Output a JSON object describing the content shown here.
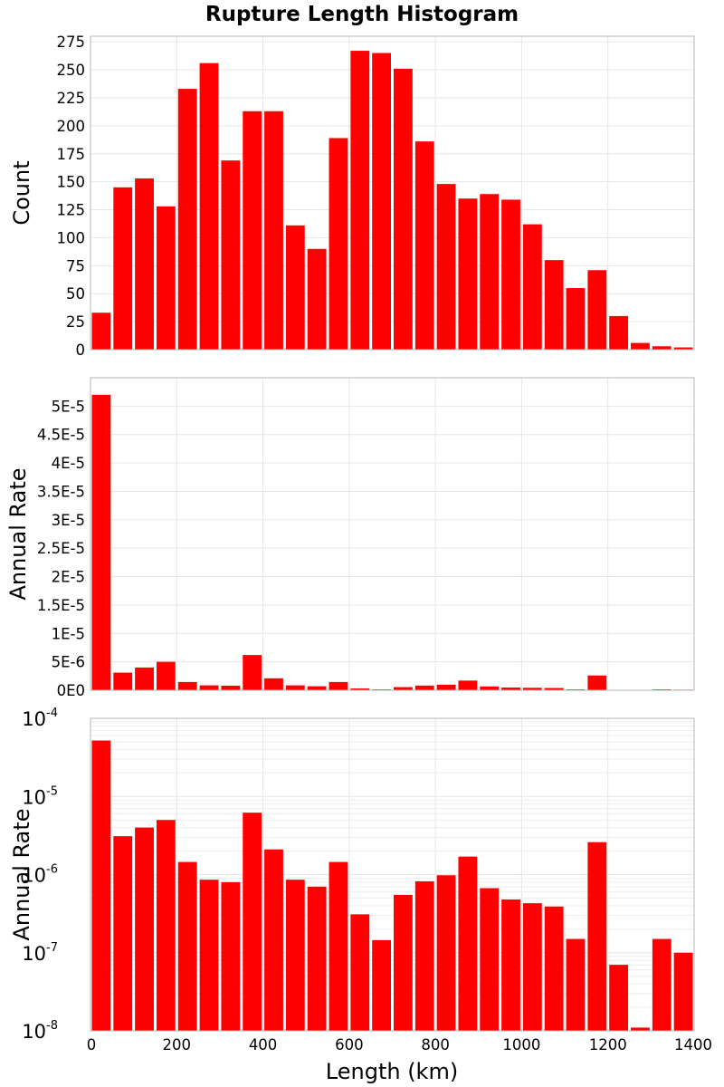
{
  "figure": {
    "title": "Rupture Length Histogram",
    "xlabel": "Length (km)",
    "bar_color": "#ff0000",
    "xlim": [
      0,
      1400
    ],
    "xticks": [
      0,
      200,
      400,
      600,
      800,
      1000,
      1200,
      1400
    ],
    "bin_width": 50
  },
  "chart_data": [
    {
      "type": "bar",
      "ylabel": "Count",
      "yscale": "linear",
      "ylim": [
        0,
        280
      ],
      "yticks": [
        0,
        25,
        50,
        75,
        100,
        125,
        150,
        175,
        200,
        225,
        250,
        275
      ],
      "ytick_labels": [
        "0",
        "25",
        "50",
        "75",
        "100",
        "125",
        "150",
        "175",
        "200",
        "225",
        "250",
        "275"
      ],
      "grid": true,
      "x": [
        25,
        75,
        125,
        175,
        225,
        275,
        325,
        375,
        425,
        475,
        525,
        575,
        625,
        675,
        725,
        775,
        825,
        875,
        925,
        975,
        1025,
        1075,
        1125,
        1175,
        1225,
        1275,
        1325,
        1375
      ],
      "values": [
        33,
        145,
        153,
        128,
        233,
        256,
        169,
        213,
        213,
        111,
        90,
        189,
        267,
        265,
        251,
        186,
        148,
        135,
        139,
        134,
        112,
        80,
        55,
        71,
        30,
        6,
        3,
        2
      ]
    },
    {
      "type": "bar",
      "ylabel": "Annual Rate",
      "yscale": "linear",
      "ylim": [
        0,
        5.5e-05
      ],
      "yticks": [
        0,
        5e-06,
        1e-05,
        1.5e-05,
        2e-05,
        2.5e-05,
        3e-05,
        3.5e-05,
        4e-05,
        4.5e-05,
        5e-05
      ],
      "ytick_labels": [
        "0E0",
        "5E-6",
        "1E-5",
        "1.5E-5",
        "2E-5",
        "2.5E-5",
        "3E-5",
        "3.5E-5",
        "4E-5",
        "4.5E-5",
        "5E-5"
      ],
      "grid": true,
      "x": [
        25,
        75,
        125,
        175,
        225,
        275,
        325,
        375,
        425,
        475,
        525,
        575,
        625,
        675,
        725,
        775,
        825,
        875,
        925,
        975,
        1025,
        1075,
        1125,
        1175,
        1225,
        1275,
        1325,
        1375
      ],
      "values": [
        5.2e-05,
        3.1e-06,
        4e-06,
        5e-06,
        1.45e-06,
        8.6e-07,
        8e-07,
        6.2e-06,
        2.1e-06,
        8.6e-07,
        7e-07,
        1.45e-06,
        3.1e-07,
        1.45e-07,
        5.5e-07,
        8.2e-07,
        9.8e-07,
        1.7e-06,
        6.7e-07,
        4.8e-07,
        4.3e-07,
        3.9e-07,
        1.5e-07,
        2.6e-06,
        7e-08,
        1.1e-08,
        1.5e-07,
        1e-07
      ]
    },
    {
      "type": "bar",
      "ylabel": "Annual Rate",
      "yscale": "log",
      "ylim": [
        1e-08,
        0.0001
      ],
      "ytick_labels": [
        {
          "base": "10",
          "exp": "-4"
        },
        {
          "base": "10",
          "exp": "-5"
        },
        {
          "base": "10",
          "exp": "-6"
        },
        {
          "base": "10",
          "exp": "-7"
        },
        {
          "base": "10",
          "exp": "-8"
        }
      ],
      "grid": true,
      "x": [
        25,
        75,
        125,
        175,
        225,
        275,
        325,
        375,
        425,
        475,
        525,
        575,
        625,
        675,
        725,
        775,
        825,
        875,
        925,
        975,
        1025,
        1075,
        1125,
        1175,
        1225,
        1275,
        1325,
        1375
      ],
      "values": [
        5.2e-05,
        3.1e-06,
        4e-06,
        5e-06,
        1.45e-06,
        8.6e-07,
        8e-07,
        6.2e-06,
        2.1e-06,
        8.6e-07,
        7e-07,
        1.45e-06,
        3.1e-07,
        1.45e-07,
        5.5e-07,
        8.2e-07,
        9.8e-07,
        1.7e-06,
        6.7e-07,
        4.8e-07,
        4.3e-07,
        3.9e-07,
        1.5e-07,
        2.6e-06,
        7e-08,
        1.1e-08,
        1.5e-07,
        1e-07
      ]
    }
  ]
}
